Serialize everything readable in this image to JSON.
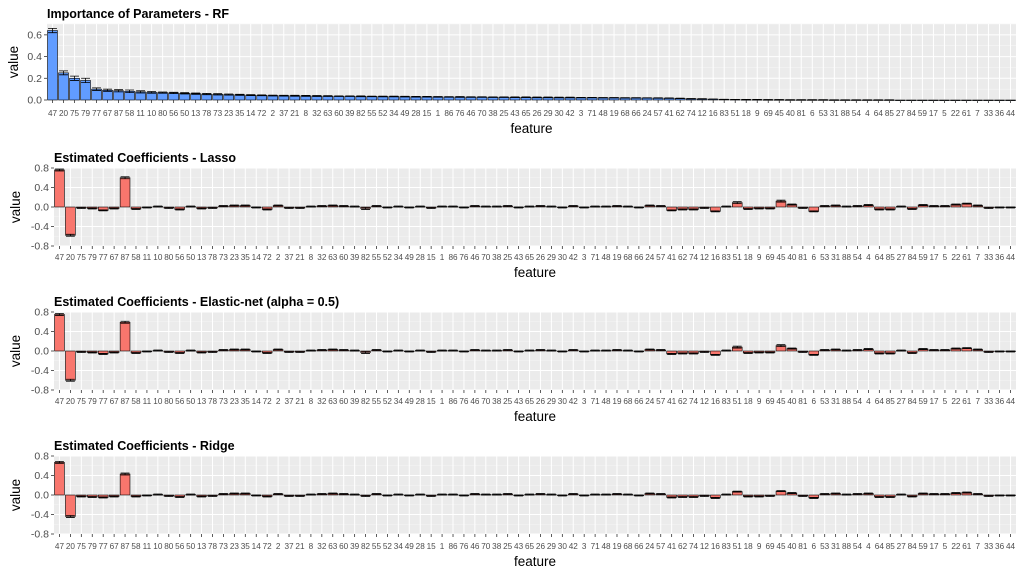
{
  "colors": {
    "rf": "#619CFF",
    "linear": "#F8766D",
    "panel": "#EBEBEB"
  },
  "chart_data": [
    {
      "type": "bar",
      "title": "Importance of Parameters - RF",
      "xlabel": "feature",
      "ylabel": "value",
      "ylim": [
        0,
        0.7
      ],
      "yticks": [
        "0.0",
        "0.2",
        "0.4",
        "0.6"
      ],
      "ytick_values": [
        0,
        0.2,
        0.4,
        0.6
      ],
      "legend": "none",
      "grid": true,
      "categories": [
        "47",
        "20",
        "75",
        "79",
        "77",
        "67",
        "87",
        "58",
        "11",
        "10",
        "80",
        "56",
        "50",
        "13",
        "78",
        "73",
        "23",
        "35",
        "14",
        "72",
        "2",
        "37",
        "21",
        "8",
        "32",
        "63",
        "60",
        "39",
        "82",
        "55",
        "52",
        "34",
        "49",
        "28",
        "15",
        "1",
        "86",
        "76",
        "46",
        "70",
        "38",
        "25",
        "43",
        "65",
        "26",
        "29",
        "30",
        "42",
        "3",
        "71",
        "48",
        "19",
        "68",
        "66",
        "24",
        "57",
        "41",
        "62",
        "74",
        "12",
        "16",
        "83",
        "51",
        "18",
        "9",
        "69",
        "45",
        "40",
        "81",
        "6",
        "53",
        "31",
        "88",
        "54",
        "4",
        "64",
        "85",
        "27",
        "84",
        "59",
        "17",
        "5",
        "22",
        "61",
        "7",
        "33",
        "36",
        "44"
      ],
      "values": [
        0.64,
        0.25,
        0.2,
        0.18,
        0.1,
        0.09,
        0.085,
        0.08,
        0.075,
        0.07,
        0.068,
        0.065,
        0.062,
        0.058,
        0.055,
        0.052,
        0.05,
        0.048,
        0.045,
        0.043,
        0.041,
        0.04,
        0.039,
        0.038,
        0.037,
        0.036,
        0.035,
        0.035,
        0.034,
        0.033,
        0.032,
        0.032,
        0.031,
        0.03,
        0.03,
        0.029,
        0.028,
        0.028,
        0.027,
        0.027,
        0.026,
        0.026,
        0.025,
        0.025,
        0.024,
        0.024,
        0.023,
        0.023,
        0.022,
        0.022,
        0.021,
        0.021,
        0.02,
        0.02,
        0.019,
        0.018,
        0.017,
        0.015,
        0.012,
        0.01,
        0.008,
        0.006,
        0.005,
        0.004,
        0.004,
        0.003,
        0.003,
        0.002,
        0.002,
        0.002,
        0.002,
        0.001,
        0.001,
        0.001,
        0.001,
        0.001,
        0.001,
        0,
        0,
        0,
        0,
        0,
        0,
        0,
        0,
        0,
        0,
        0
      ],
      "errors": [
        0.02,
        0.018,
        0.02,
        0.02,
        0.012,
        0.01,
        0.01,
        0.012,
        0.01,
        0.008,
        0.006,
        0.006,
        0.006,
        0.006,
        0.006,
        0.006,
        0.005,
        0.005,
        0.004,
        0.004,
        0.004,
        0.004,
        0.004,
        0.004,
        0.004,
        0.004,
        0.003,
        0.003,
        0.004,
        0.003,
        0.003,
        0.003,
        0.003,
        0.003,
        0.003,
        0.003,
        0.003,
        0.004,
        0.003,
        0.003,
        0.003,
        0.003,
        0.003,
        0.003,
        0.003,
        0.003,
        0.003,
        0.003,
        0.002,
        0.002,
        0.002,
        0.002,
        0.002,
        0.002,
        0.002,
        0.002,
        0.002,
        0.002,
        0.002,
        0.002,
        0.001,
        0.001,
        0.001,
        0.001,
        0.001,
        0.001,
        0.001,
        0.001,
        0.001,
        0.001,
        0.001,
        0.001,
        0.001,
        0.001,
        0.001,
        0.001,
        0.001,
        0,
        0,
        0,
        0,
        0,
        0,
        0,
        0,
        0,
        0,
        0
      ],
      "color": "#619CFF"
    },
    {
      "type": "bar",
      "title": "Estimated Coefficients - Lasso",
      "xlabel": "feature",
      "ylabel": "value",
      "ylim": [
        -0.8,
        0.8
      ],
      "yticks": [
        "-0.8",
        "-0.4",
        "0.0",
        "0.4",
        "0.8"
      ],
      "ytick_values": [
        -0.8,
        -0.4,
        0,
        0.4,
        0.8
      ],
      "legend": "none",
      "grid": true,
      "categories": [
        "47",
        "20",
        "75",
        "79",
        "77",
        "67",
        "87",
        "58",
        "11",
        "10",
        "80",
        "56",
        "50",
        "13",
        "78",
        "73",
        "23",
        "35",
        "14",
        "72",
        "2",
        "37",
        "21",
        "8",
        "32",
        "63",
        "60",
        "39",
        "82",
        "55",
        "52",
        "34",
        "49",
        "28",
        "15",
        "1",
        "86",
        "76",
        "46",
        "70",
        "38",
        "25",
        "43",
        "65",
        "26",
        "29",
        "30",
        "42",
        "3",
        "71",
        "48",
        "19",
        "68",
        "66",
        "24",
        "57",
        "41",
        "62",
        "74",
        "12",
        "16",
        "83",
        "51",
        "18",
        "9",
        "69",
        "45",
        "40",
        "81",
        "6",
        "53",
        "31",
        "88",
        "54",
        "4",
        "64",
        "85",
        "27",
        "84",
        "59",
        "17",
        "5",
        "22",
        "61",
        "7",
        "33",
        "36",
        "44"
      ],
      "values": [
        0.76,
        -0.58,
        -0.02,
        -0.03,
        -0.07,
        -0.03,
        0.6,
        -0.04,
        -0.01,
        0.01,
        -0.02,
        -0.05,
        0.01,
        -0.03,
        -0.02,
        0.02,
        0.03,
        0.03,
        -0.01,
        -0.05,
        0.03,
        -0.02,
        -0.02,
        0.01,
        0.02,
        0.03,
        0.02,
        0.01,
        -0.03,
        0.02,
        -0.01,
        0.01,
        -0.01,
        0.01,
        -0.02,
        0.01,
        0.01,
        -0.01,
        0.02,
        0.01,
        0.01,
        0.02,
        -0.01,
        0.01,
        0.02,
        0.01,
        -0.01,
        0.02,
        -0.01,
        0.01,
        0.01,
        0.02,
        0.01,
        -0.01,
        0.03,
        0.02,
        -0.07,
        -0.05,
        -0.05,
        -0.02,
        -0.09,
        0.01,
        0.09,
        -0.04,
        -0.03,
        -0.03,
        0.12,
        0.05,
        -0.02,
        -0.09,
        0.02,
        0.03,
        0.01,
        0.02,
        0.04,
        -0.05,
        -0.05,
        0.01,
        -0.04,
        0.04,
        0.02,
        0.02,
        0.05,
        0.07,
        0.03,
        -0.02,
        -0.01,
        -0.01
      ],
      "errors": [
        0.02,
        0.02,
        0.01,
        0.01,
        0.01,
        0.01,
        0.02,
        0.01,
        0.01,
        0.01,
        0.01,
        0.01,
        0.01,
        0.01,
        0.01,
        0.01,
        0.01,
        0.01,
        0.01,
        0.01,
        0.01,
        0.01,
        0.01,
        0.01,
        0.01,
        0.01,
        0.01,
        0.01,
        0.02,
        0.01,
        0.01,
        0.01,
        0.01,
        0.01,
        0.01,
        0.01,
        0.01,
        0.01,
        0.01,
        0.01,
        0.01,
        0.01,
        0.01,
        0.01,
        0.01,
        0.01,
        0.01,
        0.01,
        0.01,
        0.01,
        0.01,
        0.01,
        0.01,
        0.01,
        0.01,
        0.01,
        0.01,
        0.01,
        0.01,
        0.01,
        0.01,
        0.01,
        0.02,
        0.01,
        0.01,
        0.01,
        0.02,
        0.01,
        0.01,
        0.01,
        0.01,
        0.01,
        0.01,
        0.01,
        0.01,
        0.01,
        0.01,
        0.01,
        0.01,
        0.01,
        0.01,
        0.01,
        0.01,
        0.01,
        0.01,
        0.01,
        0.01,
        0.01
      ],
      "color": "#F8766D"
    },
    {
      "type": "bar",
      "title": "Estimated Coefficients - Elastic-net (alpha = 0.5)",
      "xlabel": "feature",
      "ylabel": "value",
      "ylim": [
        -0.8,
        0.8
      ],
      "yticks": [
        "-0.8",
        "-0.4",
        "0.0",
        "0.4",
        "0.8"
      ],
      "ytick_values": [
        -0.8,
        -0.4,
        0,
        0.4,
        0.8
      ],
      "legend": "none",
      "grid": true,
      "categories": [
        "47",
        "20",
        "75",
        "79",
        "77",
        "67",
        "87",
        "58",
        "11",
        "10",
        "80",
        "56",
        "50",
        "13",
        "78",
        "73",
        "23",
        "35",
        "14",
        "72",
        "2",
        "37",
        "21",
        "8",
        "32",
        "63",
        "60",
        "39",
        "82",
        "55",
        "52",
        "34",
        "49",
        "28",
        "15",
        "1",
        "86",
        "76",
        "46",
        "70",
        "38",
        "25",
        "43",
        "65",
        "26",
        "29",
        "30",
        "42",
        "3",
        "71",
        "48",
        "19",
        "68",
        "66",
        "24",
        "57",
        "41",
        "62",
        "74",
        "12",
        "16",
        "83",
        "51",
        "18",
        "9",
        "69",
        "45",
        "40",
        "81",
        "6",
        "53",
        "31",
        "88",
        "54",
        "4",
        "64",
        "85",
        "27",
        "84",
        "59",
        "17",
        "5",
        "22",
        "61",
        "7",
        "33",
        "36",
        "44"
      ],
      "values": [
        0.75,
        -0.6,
        -0.02,
        -0.03,
        -0.06,
        -0.03,
        0.59,
        -0.04,
        -0.01,
        0.01,
        -0.02,
        -0.04,
        0.01,
        -0.03,
        -0.02,
        0.02,
        0.03,
        0.03,
        -0.01,
        -0.04,
        0.03,
        -0.02,
        -0.02,
        0.01,
        0.02,
        0.03,
        0.02,
        0.01,
        -0.03,
        0.02,
        -0.01,
        0.01,
        -0.01,
        0.01,
        -0.02,
        0.01,
        0.01,
        -0.01,
        0.02,
        0.01,
        0.01,
        0.02,
        -0.01,
        0.01,
        0.02,
        0.01,
        -0.01,
        0.02,
        -0.01,
        0.01,
        0.01,
        0.02,
        0.01,
        -0.01,
        0.03,
        0.02,
        -0.06,
        -0.05,
        -0.05,
        -0.02,
        -0.08,
        0.01,
        0.08,
        -0.04,
        -0.03,
        -0.03,
        0.11,
        0.05,
        -0.02,
        -0.08,
        0.02,
        0.03,
        0.01,
        0.02,
        0.04,
        -0.05,
        -0.05,
        0.01,
        -0.04,
        0.04,
        0.02,
        0.02,
        0.05,
        0.06,
        0.03,
        -0.02,
        -0.01,
        -0.01
      ],
      "errors": [
        0.02,
        0.02,
        0.01,
        0.01,
        0.01,
        0.01,
        0.02,
        0.01,
        0.01,
        0.01,
        0.01,
        0.01,
        0.01,
        0.01,
        0.01,
        0.01,
        0.01,
        0.01,
        0.01,
        0.01,
        0.01,
        0.01,
        0.01,
        0.01,
        0.01,
        0.01,
        0.01,
        0.01,
        0.02,
        0.01,
        0.01,
        0.01,
        0.01,
        0.01,
        0.01,
        0.01,
        0.01,
        0.01,
        0.01,
        0.01,
        0.01,
        0.01,
        0.01,
        0.01,
        0.01,
        0.01,
        0.01,
        0.01,
        0.01,
        0.01,
        0.01,
        0.01,
        0.01,
        0.01,
        0.01,
        0.01,
        0.01,
        0.01,
        0.01,
        0.01,
        0.01,
        0.01,
        0.02,
        0.01,
        0.01,
        0.01,
        0.02,
        0.01,
        0.01,
        0.01,
        0.01,
        0.01,
        0.01,
        0.01,
        0.01,
        0.01,
        0.01,
        0.01,
        0.01,
        0.01,
        0.01,
        0.01,
        0.01,
        0.01,
        0.01,
        0.01,
        0.01,
        0.01
      ],
      "color": "#F8766D"
    },
    {
      "type": "bar",
      "title": "Estimated Coefficients - Ridge",
      "xlabel": "feature",
      "ylabel": "value",
      "ylim": [
        -0.8,
        0.8
      ],
      "yticks": [
        "-0.8",
        "-0.4",
        "0.0",
        "0.4",
        "0.8"
      ],
      "ytick_values": [
        -0.8,
        -0.4,
        0,
        0.4,
        0.8
      ],
      "legend": "none",
      "grid": true,
      "categories": [
        "47",
        "20",
        "75",
        "79",
        "77",
        "67",
        "87",
        "58",
        "11",
        "10",
        "80",
        "56",
        "50",
        "13",
        "78",
        "73",
        "23",
        "35",
        "14",
        "72",
        "2",
        "37",
        "21",
        "8",
        "32",
        "63",
        "60",
        "39",
        "82",
        "55",
        "52",
        "34",
        "49",
        "28",
        "15",
        "1",
        "86",
        "76",
        "46",
        "70",
        "38",
        "25",
        "43",
        "65",
        "26",
        "29",
        "30",
        "42",
        "3",
        "71",
        "48",
        "19",
        "68",
        "66",
        "24",
        "57",
        "41",
        "62",
        "74",
        "12",
        "16",
        "83",
        "51",
        "18",
        "9",
        "69",
        "45",
        "40",
        "81",
        "6",
        "53",
        "31",
        "88",
        "54",
        "4",
        "64",
        "85",
        "27",
        "84",
        "59",
        "17",
        "5",
        "22",
        "61",
        "7",
        "33",
        "36",
        "44"
      ],
      "values": [
        0.67,
        -0.44,
        -0.03,
        -0.04,
        -0.05,
        -0.03,
        0.43,
        -0.03,
        -0.01,
        0.01,
        -0.02,
        -0.04,
        0.01,
        -0.03,
        -0.02,
        0.02,
        0.03,
        0.03,
        -0.01,
        -0.03,
        0.02,
        -0.02,
        -0.02,
        0.01,
        0.02,
        0.03,
        0.02,
        0.01,
        -0.02,
        0.02,
        -0.01,
        0.01,
        -0.01,
        0.01,
        -0.02,
        0.01,
        0.01,
        -0.01,
        0.02,
        0.01,
        0.01,
        0.02,
        -0.01,
        0.01,
        0.02,
        0.01,
        -0.01,
        0.02,
        -0.01,
        0.01,
        0.01,
        0.02,
        0.01,
        -0.01,
        0.03,
        0.02,
        -0.05,
        -0.04,
        -0.04,
        -0.02,
        -0.06,
        0.01,
        0.07,
        -0.03,
        -0.03,
        -0.02,
        0.08,
        0.04,
        -0.02,
        -0.06,
        0.02,
        0.03,
        0.01,
        0.02,
        0.03,
        -0.04,
        -0.04,
        0.01,
        -0.03,
        0.03,
        0.02,
        0.02,
        0.04,
        0.05,
        0.02,
        -0.02,
        -0.01,
        -0.01
      ],
      "errors": [
        0.02,
        0.02,
        0.01,
        0.01,
        0.01,
        0.01,
        0.02,
        0.01,
        0.01,
        0.01,
        0.01,
        0.01,
        0.01,
        0.01,
        0.01,
        0.01,
        0.01,
        0.01,
        0.01,
        0.01,
        0.01,
        0.01,
        0.01,
        0.01,
        0.01,
        0.01,
        0.01,
        0.01,
        0.01,
        0.01,
        0.01,
        0.01,
        0.01,
        0.01,
        0.01,
        0.01,
        0.01,
        0.01,
        0.01,
        0.01,
        0.01,
        0.01,
        0.01,
        0.01,
        0.01,
        0.01,
        0.01,
        0.01,
        0.01,
        0.01,
        0.01,
        0.01,
        0.01,
        0.01,
        0.01,
        0.01,
        0.01,
        0.01,
        0.01,
        0.01,
        0.01,
        0.01,
        0.01,
        0.01,
        0.01,
        0.01,
        0.01,
        0.01,
        0.01,
        0.01,
        0.01,
        0.01,
        0.01,
        0.01,
        0.01,
        0.01,
        0.01,
        0.01,
        0.01,
        0.01,
        0.01,
        0.01,
        0.01,
        0.01,
        0.01,
        0.01,
        0.01,
        0.01
      ],
      "color": "#F8766D"
    }
  ]
}
